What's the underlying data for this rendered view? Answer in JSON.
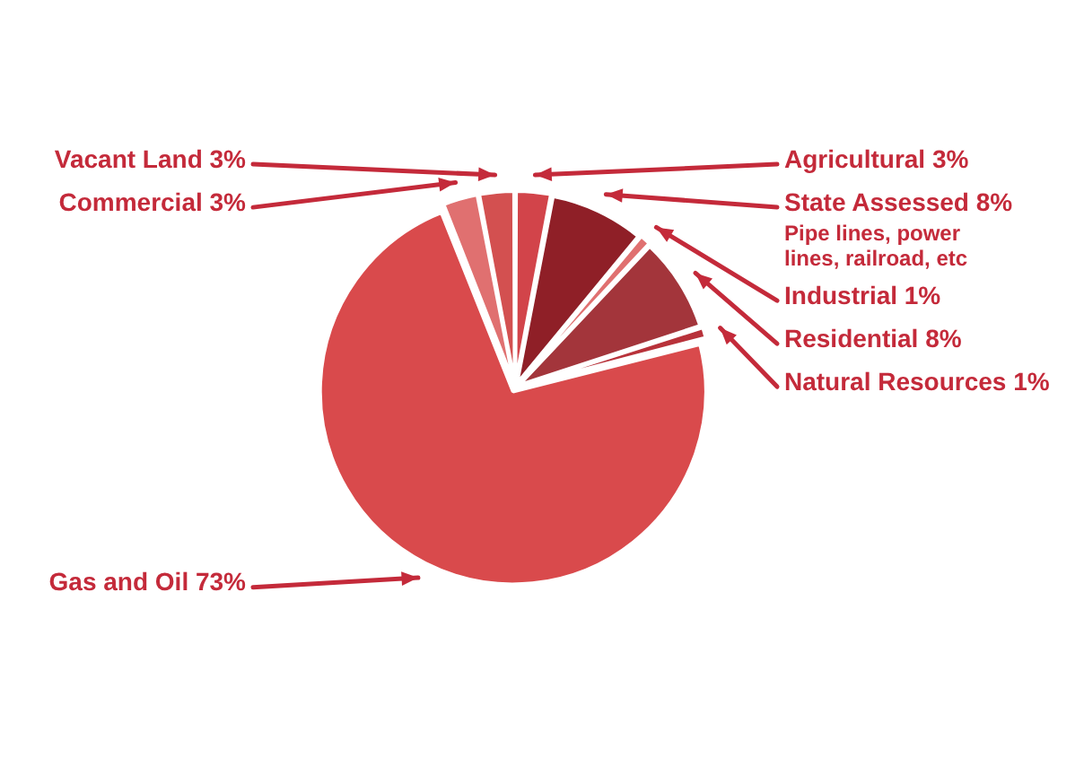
{
  "chart_data": {
    "type": "pie",
    "categories": [
      "Agricultural",
      "State Assessed",
      "Industrial",
      "Residential",
      "Natural Resources",
      "Gas and Oil",
      "Commercial",
      "Vacant Land"
    ],
    "values": [
      3,
      8,
      1,
      8,
      1,
      73,
      3,
      3
    ],
    "value_labels": [
      "3%",
      "8%",
      "1%",
      "8%",
      "1%",
      "73%",
      "3%",
      "3%"
    ],
    "colors": [
      "#d2444a",
      "#8f1f27",
      "#e07070",
      "#a3353b",
      "#b8323a",
      "#d94a4c",
      "#e07070",
      "#d35050"
    ],
    "annotations": [
      {
        "text": "Pipe lines, power lines, railroad, etc",
        "x": "State Assessed"
      }
    ],
    "legend": false
  }
}
